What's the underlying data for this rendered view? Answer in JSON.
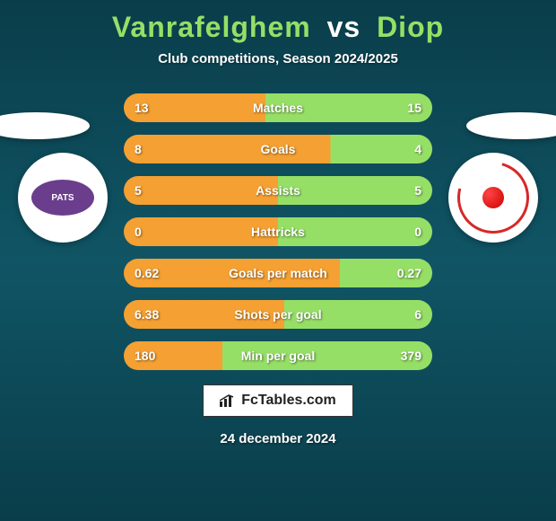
{
  "title": {
    "player_left": "Vanrafelghem",
    "vs": "vs",
    "player_right": "Diop"
  },
  "subtitle": "Club competitions, Season 2024/2025",
  "colors": {
    "accent_green": "#96df66",
    "accent_orange": "#f5a032",
    "bg_top": "#0a3d4a",
    "bg_mid": "#105565",
    "text_white": "#ffffff"
  },
  "badges": {
    "left_text": "PATS",
    "left_bg": "#6a3e8c",
    "right_ring": "#d62828"
  },
  "rows": [
    {
      "label": "Matches",
      "left": "13",
      "right": "15",
      "left_pct": 46
    },
    {
      "label": "Goals",
      "left": "8",
      "right": "4",
      "left_pct": 67
    },
    {
      "label": "Assists",
      "left": "5",
      "right": "5",
      "left_pct": 50
    },
    {
      "label": "Hattricks",
      "left": "0",
      "right": "0",
      "left_pct": 50
    },
    {
      "label": "Goals per match",
      "left": "0.62",
      "right": "0.27",
      "left_pct": 70
    },
    {
      "label": "Shots per goal",
      "left": "6.38",
      "right": "6",
      "left_pct": 52
    },
    {
      "label": "Min per goal",
      "left": "180",
      "right": "379",
      "left_pct": 32
    }
  ],
  "footer": {
    "brand": "FcTables.com",
    "date": "24 december 2024"
  }
}
